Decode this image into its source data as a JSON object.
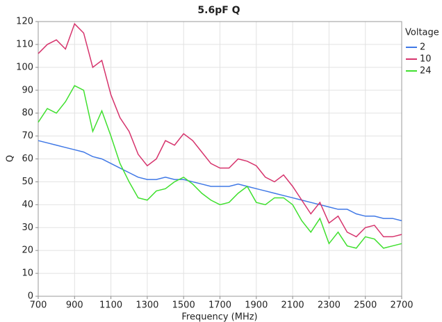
{
  "chart_data": {
    "type": "line",
    "title": "5.6pF Q",
    "x_label": "Frequency (MHz)",
    "y_label": "Q",
    "legend_title": "Voltage",
    "legend": "right",
    "grid": true,
    "x": [
      700,
      750,
      800,
      850,
      900,
      950,
      1000,
      1050,
      1100,
      1150,
      1200,
      1250,
      1300,
      1350,
      1400,
      1450,
      1500,
      1550,
      1600,
      1650,
      1700,
      1750,
      1800,
      1850,
      1900,
      1950,
      2000,
      2050,
      2100,
      2150,
      2200,
      2250,
      2300,
      2350,
      2400,
      2450,
      2500,
      2550,
      2600,
      2650,
      2700
    ],
    "series": [
      {
        "name": "2",
        "color": "#3f78e6",
        "values": [
          68,
          67,
          66,
          65,
          64,
          63,
          61,
          60,
          58,
          56,
          54,
          52,
          51,
          51,
          52,
          51,
          51,
          50,
          49,
          48,
          48,
          48,
          49,
          48,
          47,
          46,
          45,
          44,
          43,
          42,
          41,
          40,
          39,
          38,
          38,
          36,
          35,
          35,
          34,
          34,
          33
        ]
      },
      {
        "name": "10",
        "color": "#d6336c",
        "values": [
          106,
          110,
          112,
          108,
          119,
          115,
          100,
          103,
          88,
          78,
          72,
          62,
          57,
          60,
          68,
          66,
          71,
          68,
          63,
          58,
          56,
          56,
          60,
          59,
          57,
          52,
          50,
          53,
          48,
          42,
          36,
          41,
          32,
          35,
          28,
          26,
          30,
          31,
          26,
          26,
          27
        ]
      },
      {
        "name": "24",
        "color": "#3fe02e",
        "values": [
          76,
          82,
          80,
          85,
          92,
          90,
          72,
          81,
          70,
          58,
          50,
          43,
          42,
          46,
          47,
          50,
          52,
          49,
          45,
          42,
          40,
          41,
          45,
          48,
          41,
          40,
          43,
          43,
          40,
          33,
          28,
          34,
          23,
          28,
          22,
          21,
          26,
          25,
          21,
          22,
          23
        ]
      }
    ],
    "xlim": [
      700,
      2700
    ],
    "xticks": [
      700,
      900,
      1100,
      1300,
      1500,
      1700,
      1900,
      2100,
      2300,
      2500,
      2700
    ],
    "ylim": [
      0,
      120
    ],
    "yticks": [
      0,
      10,
      20,
      30,
      40,
      50,
      60,
      70,
      80,
      90,
      100,
      110,
      120
    ]
  }
}
